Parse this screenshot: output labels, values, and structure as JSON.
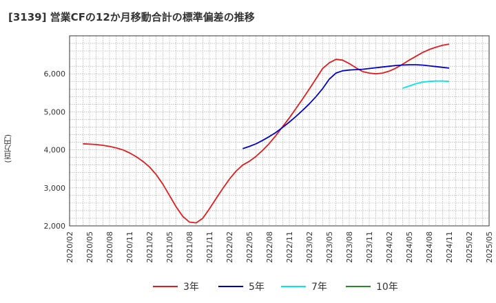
{
  "chart_data": {
    "type": "line",
    "title": "[3139]  営業CFの12か月移動合計の標準偏差の推移",
    "xlabel": "",
    "ylabel": "(百万円)",
    "ylim": [
      2000,
      7000
    ],
    "yticks": [
      2000,
      3000,
      4000,
      5000,
      6000
    ],
    "ytick_labels": [
      "2,000",
      "3,000",
      "4,000",
      "5,000",
      "6,000"
    ],
    "xticks": [
      "2020/02",
      "2020/05",
      "2020/08",
      "2020/11",
      "2021/02",
      "2021/05",
      "2021/08",
      "2021/11",
      "2022/02",
      "2022/05",
      "2022/08",
      "2022/11",
      "2023/02",
      "2023/05",
      "2023/08",
      "2023/11",
      "2024/02",
      "2024/05",
      "2024/08",
      "2024/11",
      "2025/02",
      "2025/05"
    ],
    "grid": true,
    "legend_position": "bottom",
    "series": [
      {
        "name": "3年",
        "color": "#e41a1c",
        "x": [
          "2020/04",
          "2020/05",
          "2020/06",
          "2020/07",
          "2020/08",
          "2020/09",
          "2020/10",
          "2020/11",
          "2020/12",
          "2021/01",
          "2021/02",
          "2021/03",
          "2021/04",
          "2021/05",
          "2021/06",
          "2021/07",
          "2021/08",
          "2021/09",
          "2021/10",
          "2021/11",
          "2021/12",
          "2022/01",
          "2022/02",
          "2022/03",
          "2022/04",
          "2022/05",
          "2022/06",
          "2022/07",
          "2022/08",
          "2022/09",
          "2022/10",
          "2022/11",
          "2022/12",
          "2023/01",
          "2023/02",
          "2023/03",
          "2023/04",
          "2023/05",
          "2023/06",
          "2023/07",
          "2023/08",
          "2023/09",
          "2023/10",
          "2023/11",
          "2023/12",
          "2024/01",
          "2024/02",
          "2024/03",
          "2024/04",
          "2024/05",
          "2024/06",
          "2024/07",
          "2024/08",
          "2024/09",
          "2024/10",
          "2024/11"
        ],
        "values": [
          4160,
          4150,
          4140,
          4120,
          4090,
          4050,
          4000,
          3920,
          3820,
          3700,
          3550,
          3350,
          3100,
          2800,
          2500,
          2250,
          2100,
          2080,
          2200,
          2450,
          2720,
          2980,
          3230,
          3440,
          3600,
          3700,
          3830,
          3990,
          4170,
          4380,
          4610,
          4840,
          5090,
          5340,
          5600,
          5870,
          6140,
          6290,
          6380,
          6360,
          6270,
          6160,
          6060,
          6020,
          6000,
          6020,
          6070,
          6150,
          6250,
          6360,
          6460,
          6560,
          6640,
          6700,
          6750,
          6780
        ]
      },
      {
        "name": "5年",
        "color": "#0000cc",
        "x": [
          "2022/04",
          "2022/05",
          "2022/06",
          "2022/07",
          "2022/08",
          "2022/09",
          "2022/10",
          "2022/11",
          "2022/12",
          "2023/01",
          "2023/02",
          "2023/03",
          "2023/04",
          "2023/05",
          "2023/06",
          "2023/07",
          "2023/08",
          "2023/09",
          "2023/10",
          "2023/11",
          "2023/12",
          "2024/01",
          "2024/02",
          "2024/03",
          "2024/04",
          "2024/05",
          "2024/06",
          "2024/07",
          "2024/08",
          "2024/09",
          "2024/10",
          "2024/11"
        ],
        "values": [
          4030,
          4090,
          4160,
          4250,
          4350,
          4460,
          4590,
          4730,
          4880,
          5040,
          5210,
          5400,
          5610,
          5860,
          6020,
          6080,
          6100,
          6110,
          6120,
          6140,
          6160,
          6180,
          6200,
          6220,
          6230,
          6240,
          6240,
          6230,
          6210,
          6190,
          6170,
          6150
        ]
      },
      {
        "name": "7年",
        "color": "#00e5ee",
        "x": [
          "2024/04",
          "2024/05",
          "2024/06",
          "2024/07",
          "2024/08",
          "2024/09",
          "2024/10",
          "2024/11"
        ],
        "values": [
          5620,
          5680,
          5740,
          5780,
          5800,
          5810,
          5810,
          5800
        ]
      },
      {
        "name": "10年",
        "color": "#228b22",
        "x": [],
        "values": []
      }
    ]
  }
}
